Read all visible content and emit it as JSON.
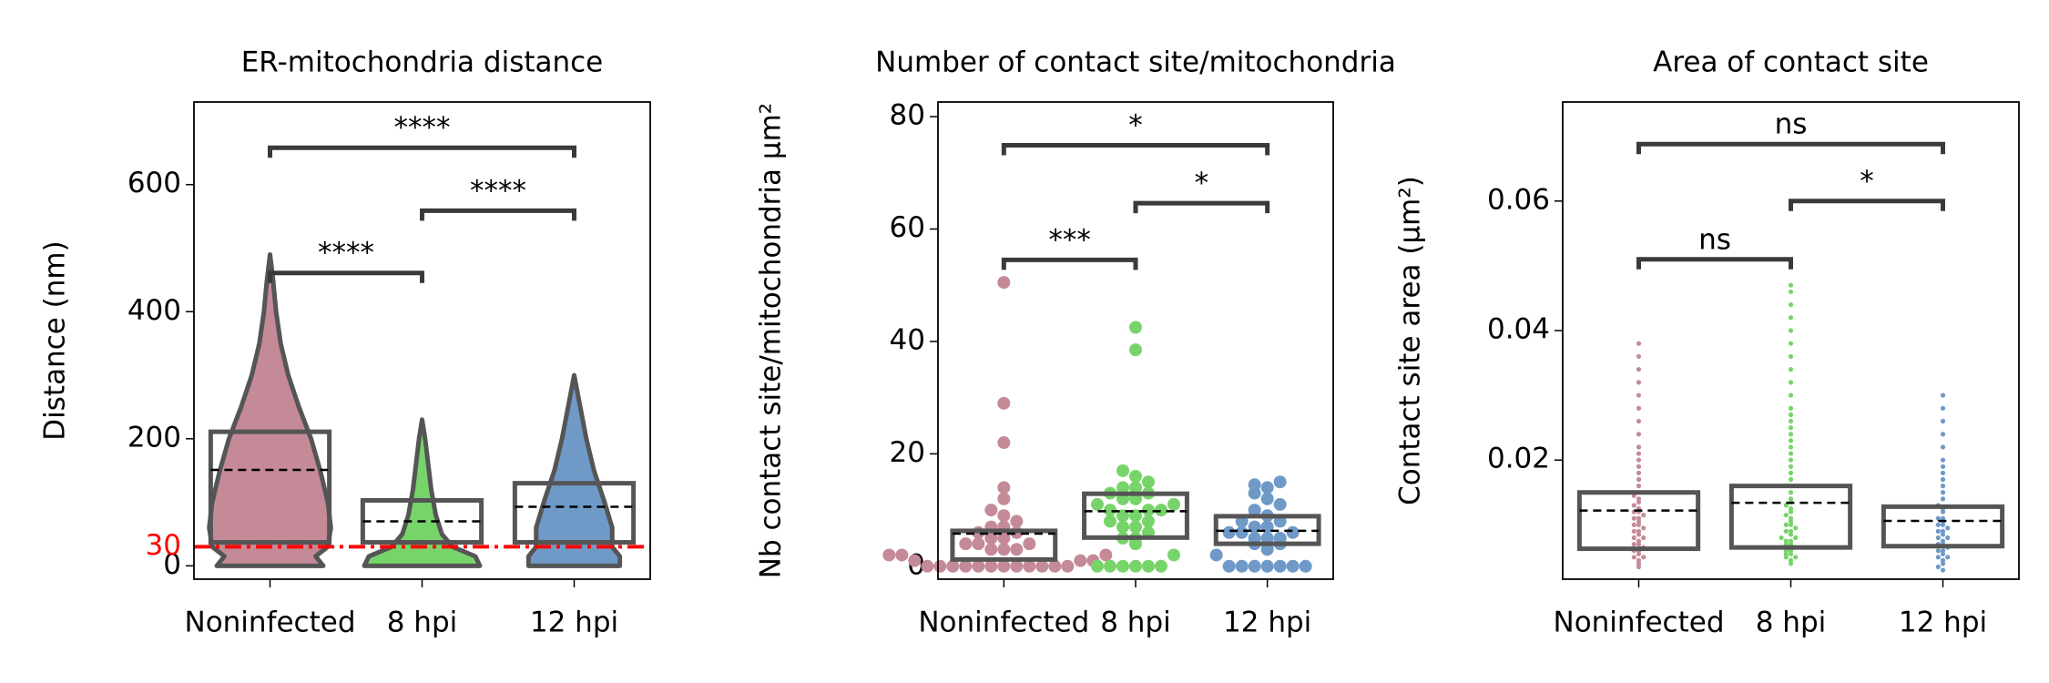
{
  "chart_data": [
    {
      "type": "violin",
      "title": "ER-mitochondria distance",
      "ylabel": "Distance (nm)",
      "categories": [
        "Noninfected",
        "8 hpi",
        "12 hpi"
      ],
      "colors": [
        "#c48a98",
        "#77d46a",
        "#6f9ac8"
      ],
      "ylim": [
        -21,
        730
      ],
      "yticks": [
        0,
        200,
        400,
        600
      ],
      "box_low": [
        37,
        37,
        37
      ],
      "box_high": [
        211,
        103,
        130
      ],
      "mean": [
        151,
        70,
        93
      ],
      "violins": [
        {
          "y": [
            0,
            15,
            30,
            60,
            100,
            150,
            200,
            250,
            300,
            350,
            400,
            450,
            490
          ],
          "width": [
            0.35,
            0.3,
            0.38,
            0.4,
            0.38,
            0.33,
            0.27,
            0.19,
            0.12,
            0.07,
            0.04,
            0.02,
            0
          ]
        },
        {
          "y": [
            0,
            15,
            30,
            50,
            80,
            120,
            160,
            200,
            230
          ],
          "width": [
            0.38,
            0.35,
            0.2,
            0.13,
            0.09,
            0.06,
            0.04,
            0.02,
            0
          ]
        },
        {
          "y": [
            0,
            15,
            30,
            60,
            100,
            150,
            200,
            250,
            300
          ],
          "width": [
            0.3,
            0.3,
            0.25,
            0.25,
            0.2,
            0.13,
            0.08,
            0.04,
            0
          ]
        }
      ],
      "hline": {
        "value": 30,
        "color": "#ff0000"
      },
      "annotations": [
        {
          "text": "****",
          "from": 0,
          "to": 1,
          "y": 461
        },
        {
          "text": "****",
          "from": 1,
          "to": 2,
          "y": 559
        },
        {
          "text": "****",
          "from": 0,
          "to": 2,
          "y": 658
        }
      ]
    },
    {
      "type": "swarm",
      "title": "Number of contact site/mitochondria",
      "ylabel": "Nb contact site/mitochondria µm²",
      "categories": [
        "Noninfected",
        "8 hpi",
        "12 hpi"
      ],
      "colors": [
        "#c48a98",
        "#77d46a",
        "#6f9ac8"
      ],
      "ylim": [
        -2.3,
        82.6
      ],
      "yticks": [
        0,
        20,
        40,
        60,
        80
      ],
      "box_low": [
        1.2,
        5.1,
        4.0
      ],
      "box_high": [
        6.3,
        12.9,
        8.9
      ],
      "mean": [
        5.8,
        9.8,
        6.3
      ],
      "points": [
        [
          0,
          0,
          0,
          0,
          0,
          0,
          0,
          0,
          0,
          0,
          0,
          0,
          1,
          1,
          1,
          2,
          2,
          2,
          3,
          3,
          3,
          4,
          4,
          4,
          5,
          5,
          6,
          6,
          7,
          7,
          8,
          9,
          10,
          12,
          14,
          22,
          29,
          50.5
        ],
        [
          0,
          0,
          0,
          0,
          0,
          0,
          2,
          4,
          5,
          5,
          6,
          7,
          7,
          8,
          8,
          9,
          9,
          10,
          10,
          10,
          11,
          11,
          12,
          12,
          13,
          13,
          14,
          14,
          15,
          16,
          17,
          38.5,
          42.5
        ],
        [
          0,
          0,
          0,
          0,
          0,
          0,
          0,
          2,
          3,
          4,
          4,
          5,
          5,
          5,
          6,
          6,
          6,
          7,
          7,
          8,
          8,
          9,
          10,
          11,
          12,
          13,
          14,
          14.5,
          15
        ]
      ],
      "annotations": [
        {
          "text": "***",
          "from": 0,
          "to": 1,
          "y": 54.5
        },
        {
          "text": "*",
          "from": 1,
          "to": 2,
          "y": 64.6
        },
        {
          "text": "*",
          "from": 0,
          "to": 2,
          "y": 74.9
        }
      ]
    },
    {
      "type": "swarm",
      "title": "Area of contact site",
      "ylabel": "Contact site area (µm²)",
      "categories": [
        "Noninfected",
        "8 hpi",
        "12 hpi"
      ],
      "colors": [
        "#c48a98",
        "#77d46a",
        "#6f9ac8"
      ],
      "ylim": [
        0.0016,
        0.0753
      ],
      "yticks": [
        0.02,
        0.04,
        0.06
      ],
      "box_low": [
        0.0063,
        0.0065,
        0.0067
      ],
      "box_high": [
        0.015,
        0.016,
        0.0128
      ],
      "mean": [
        0.0122,
        0.0134,
        0.0106
      ],
      "points": [
        [
          0.0035,
          0.004,
          0.0045,
          0.005,
          0.005,
          0.0055,
          0.006,
          0.006,
          0.0065,
          0.007,
          0.007,
          0.0075,
          0.008,
          0.008,
          0.0085,
          0.009,
          0.009,
          0.0095,
          0.01,
          0.01,
          0.0105,
          0.011,
          0.011,
          0.0115,
          0.012,
          0.012,
          0.0125,
          0.013,
          0.0135,
          0.014,
          0.0145,
          0.015,
          0.016,
          0.017,
          0.018,
          0.019,
          0.02,
          0.021,
          0.022,
          0.024,
          0.026,
          0.028,
          0.03,
          0.032,
          0.034,
          0.036,
          0.038
        ],
        [
          0.004,
          0.0045,
          0.005,
          0.005,
          0.0055,
          0.0055,
          0.006,
          0.006,
          0.0065,
          0.0065,
          0.007,
          0.007,
          0.0075,
          0.0075,
          0.008,
          0.008,
          0.0085,
          0.009,
          0.009,
          0.0095,
          0.01,
          0.01,
          0.0105,
          0.011,
          0.0115,
          0.012,
          0.0125,
          0.013,
          0.0135,
          0.014,
          0.015,
          0.016,
          0.017,
          0.018,
          0.019,
          0.02,
          0.021,
          0.022,
          0.023,
          0.024,
          0.025,
          0.026,
          0.027,
          0.028,
          0.03,
          0.032,
          0.034,
          0.036,
          0.038,
          0.04,
          0.042,
          0.044,
          0.046,
          0.047
        ],
        [
          0.003,
          0.0035,
          0.004,
          0.0045,
          0.005,
          0.005,
          0.0055,
          0.006,
          0.006,
          0.0065,
          0.007,
          0.007,
          0.0075,
          0.008,
          0.008,
          0.0085,
          0.009,
          0.009,
          0.0095,
          0.01,
          0.01,
          0.0105,
          0.011,
          0.011,
          0.012,
          0.0125,
          0.013,
          0.014,
          0.015,
          0.016,
          0.017,
          0.018,
          0.019,
          0.02,
          0.022,
          0.024,
          0.026,
          0.028,
          0.03
        ]
      ],
      "annotations": [
        {
          "text": "ns",
          "from": 0,
          "to": 1,
          "y": 0.051
        },
        {
          "text": "*",
          "from": 1,
          "to": 2,
          "y": 0.06
        },
        {
          "text": "ns",
          "from": 0,
          "to": 2,
          "y": 0.0688
        }
      ]
    }
  ]
}
